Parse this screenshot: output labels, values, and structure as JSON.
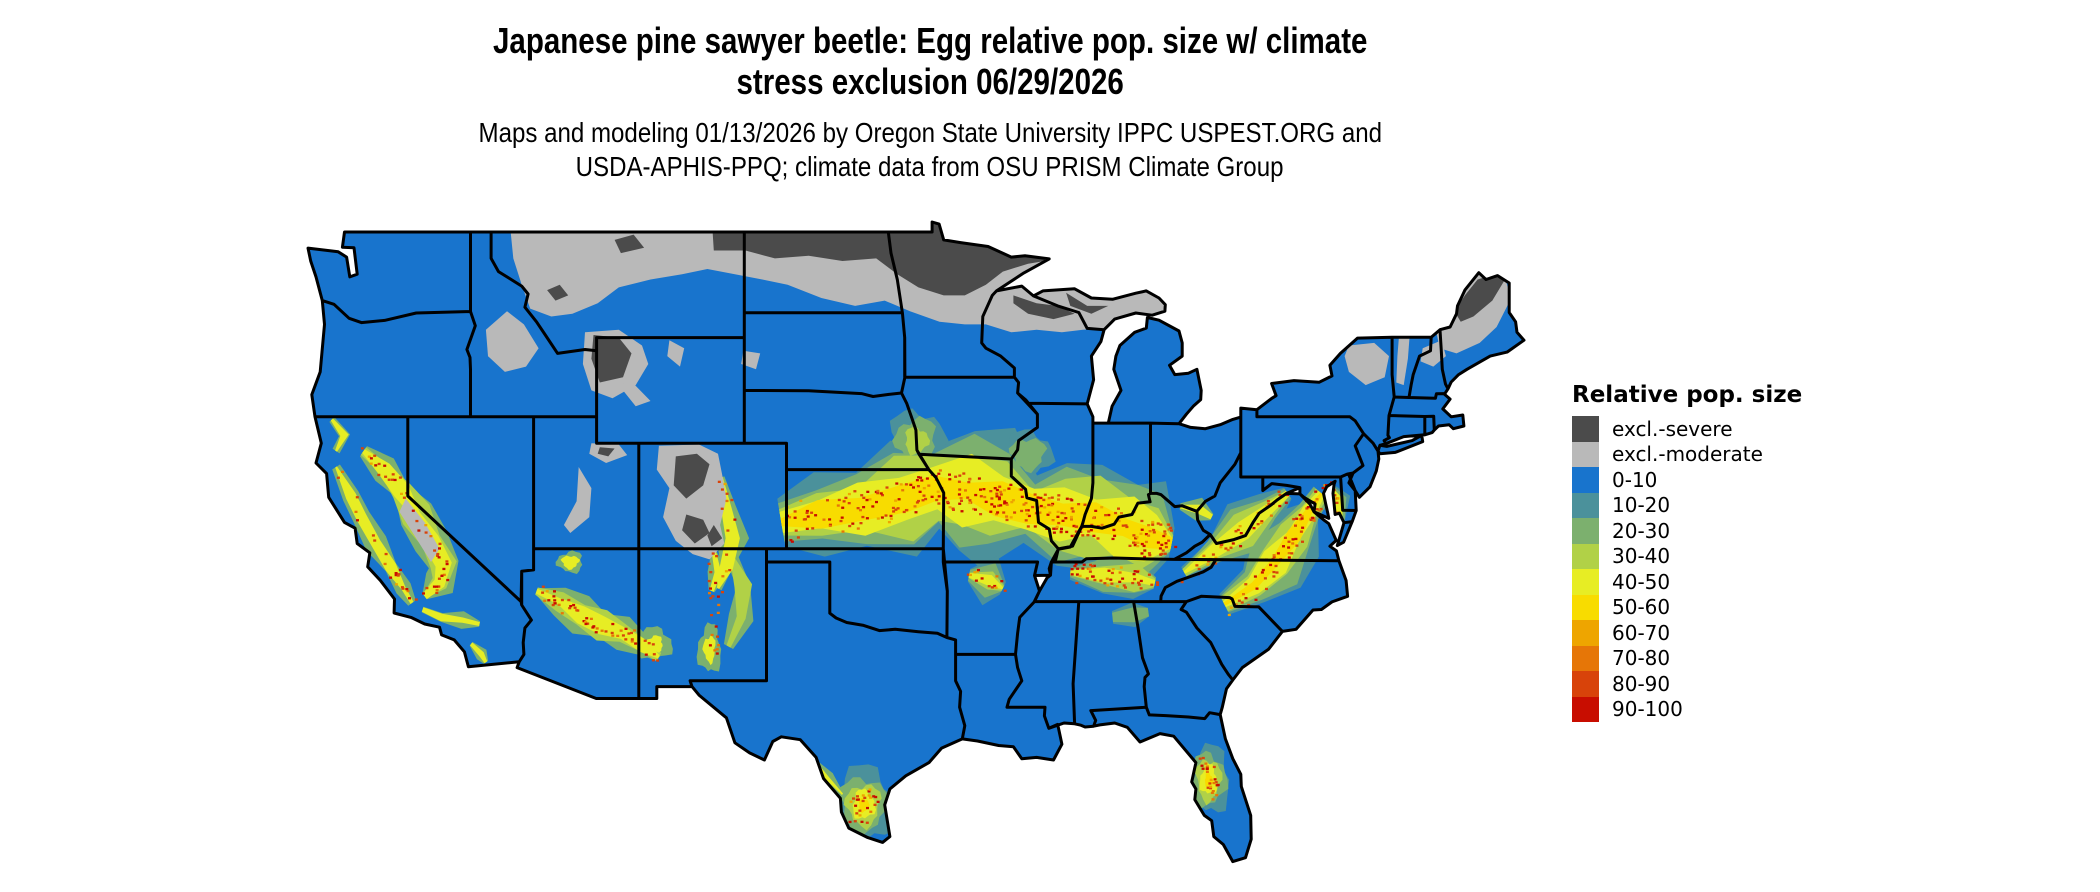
{
  "header": {
    "title_lines": [
      "Japanese pine sawyer beetle: Egg relative pop. size w/ climate",
      "stress exclusion 06/29/2026"
    ],
    "subtitle_lines": [
      "Maps and modeling 01/13/2026 by Oregon State University IPPC USPEST.ORG and",
      "USDA-APHIS-PPQ; climate data from OSU PRISM Climate Group"
    ]
  },
  "legend": {
    "title": "Relative pop. size",
    "entries": [
      {
        "label": "excl.-severe",
        "color": "#4b4b4b"
      },
      {
        "label": "excl.-moderate",
        "color": "#b9b9b9"
      },
      {
        "label": "0-10",
        "color": "#1874cd"
      },
      {
        "label": "10-20",
        "color": "#4b919b"
      },
      {
        "label": "20-30",
        "color": "#7cb06e"
      },
      {
        "label": "30-40",
        "color": "#b1d147"
      },
      {
        "label": "40-50",
        "color": "#e7ed24"
      },
      {
        "label": "50-60",
        "color": "#f8dc00"
      },
      {
        "label": "60-70",
        "color": "#eea500"
      },
      {
        "label": "70-80",
        "color": "#e67607"
      },
      {
        "label": "80-90",
        "color": "#d8430a"
      },
      {
        "label": "90-100",
        "color": "#c80d00"
      }
    ]
  },
  "map": {
    "region": "Contiguous United States",
    "base_class": "0-10"
  }
}
